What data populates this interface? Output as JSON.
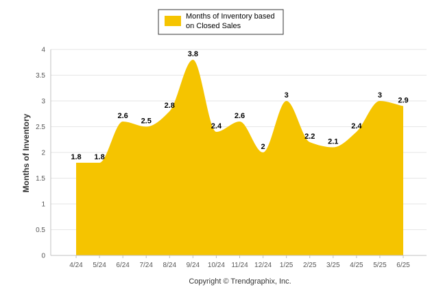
{
  "chart_data": {
    "type": "area",
    "categories": [
      "4/24",
      "5/24",
      "6/24",
      "7/24",
      "8/24",
      "9/24",
      "10/24",
      "11/24",
      "12/24",
      "1/25",
      "2/25",
      "3/25",
      "4/25",
      "5/25",
      "6/25"
    ],
    "series": [
      {
        "name": "Months of Inventory based on Closed Sales",
        "values": [
          1.8,
          1.8,
          2.6,
          2.5,
          2.8,
          3.8,
          2.4,
          2.6,
          2,
          3,
          2.2,
          2.1,
          2.4,
          3,
          2.9
        ],
        "labels": [
          "1.8",
          "1.8",
          "2.6",
          "2.5",
          "2.8",
          "3.8",
          "2.4",
          "2.6",
          "2",
          "3",
          "2.2",
          "2.1",
          "2.4",
          "3",
          "2.9"
        ]
      }
    ],
    "title": "",
    "xlabel": "",
    "ylabel": "Months of Inventory",
    "ylim": [
      0,
      4
    ],
    "yticks": [
      "0",
      "0.5",
      "1",
      "1.5",
      "2",
      "2.5",
      "3",
      "3.5",
      "4"
    ],
    "grid": true,
    "legend_position": "top-center",
    "colors": {
      "fill": "#F5C400",
      "grid": "#E6E6E6",
      "axis": "#C0C0C0"
    },
    "credit": "Copyright © Trendgraphix, Inc."
  }
}
